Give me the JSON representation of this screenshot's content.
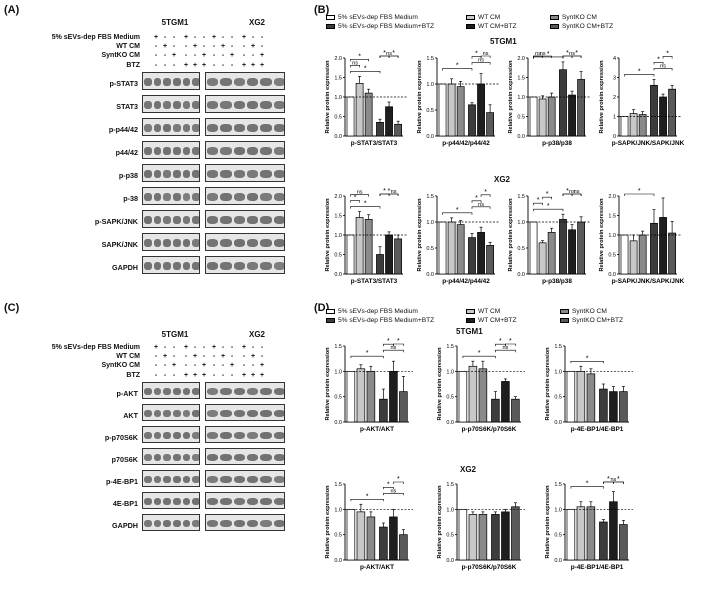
{
  "panels": {
    "A": "(A)",
    "B": "(B)",
    "C": "(C)",
    "D": "(D)"
  },
  "cells": {
    "c1": "5TGM1",
    "c2": "XG2"
  },
  "conditions": [
    "5% sEVs-dep FBS Medium",
    "WT CM",
    "SyntKO CM",
    "BTZ"
  ],
  "signs": [
    [
      "+",
      "-",
      "-",
      "+",
      "-",
      "-"
    ],
    [
      "-",
      "+",
      "-",
      "-",
      "+",
      "-"
    ],
    [
      "-",
      "-",
      "+",
      "-",
      "-",
      "+"
    ],
    [
      "-",
      "-",
      "-",
      "+",
      "+",
      "+"
    ]
  ],
  "proteinsA": [
    "p-STAT3",
    "STAT3",
    "p-p44/42",
    "p44/42",
    "p-p38",
    "p-38",
    "p-SAPK/JNK",
    "SAPK/JNK",
    "GAPDH"
  ],
  "proteinsC": [
    "p-AKT",
    "AKT",
    "p-p70S6K",
    "p70S6K",
    "p-4E-BP1",
    "4E-BP1",
    "GAPDH"
  ],
  "legendB": [
    "5% sEVs-dep FBS Medium",
    "WT CM",
    "SyntKO CM",
    "5% sEVs-dep FBS Medium+BTZ",
    "WT CM+BTZ",
    "SyntKO CM+BTZ"
  ],
  "legendD": [
    "5% sEVs-dep FBS Medium",
    "WT CM",
    "SyntKO CM",
    "5% sEVs-dep FBS Medium+BTZ",
    "WT CM+BTZ",
    "SyntKO CM+BTZ"
  ],
  "colors": {
    "white": "#ffffff",
    "wt": "#c8c8c8",
    "synt": "#8a8a8a",
    "medbtz": "#3c3c3c",
    "wtbtz": "#1e1e1e",
    "syntbtz": "#5a5a5a"
  },
  "ylabel": "Relative protein expression",
  "chart_data": [
    {
      "type": "bar",
      "panel": "B",
      "cell": "5TGM1",
      "xlabel": "p-STAT3/STAT3",
      "yticks": [
        "0.0",
        "0.5",
        "1.0",
        "1.5",
        "2.0"
      ],
      "ylim": [
        0,
        2.0
      ],
      "values": [
        1.0,
        1.35,
        1.1,
        0.35,
        0.75,
        0.3
      ],
      "errors": [
        0,
        0.18,
        0.1,
        0.08,
        0.12,
        0.08
      ],
      "sig": [
        {
          "a": 0,
          "b": 3,
          "t": "*"
        },
        {
          "a": 0,
          "b": 1,
          "t": "ns"
        },
        {
          "a": 0,
          "b": 2,
          "t": "*"
        },
        {
          "a": 3,
          "b": 5,
          "t": "ns"
        },
        {
          "a": 3,
          "b": 4,
          "t": "*"
        },
        {
          "a": 4,
          "b": 5,
          "t": "*"
        }
      ]
    },
    {
      "type": "bar",
      "panel": "B",
      "cell": "5TGM1",
      "xlabel": "p-p44/42/p44/42",
      "yticks": [
        "0.0",
        "0.5",
        "1.0",
        "1.5"
      ],
      "ylim": [
        0,
        1.5
      ],
      "values": [
        1.0,
        1.0,
        0.95,
        0.6,
        1.0,
        0.45
      ],
      "errors": [
        0,
        0.1,
        0.1,
        0.04,
        0.2,
        0.15
      ],
      "sig": [
        {
          "a": 0,
          "b": 3,
          "t": "*"
        },
        {
          "a": 3,
          "b": 5,
          "t": "ns"
        },
        {
          "a": 3,
          "b": 4,
          "t": "*"
        },
        {
          "a": 4,
          "b": 5,
          "t": "ns"
        }
      ]
    },
    {
      "type": "bar",
      "panel": "B",
      "cell": "5TGM1",
      "xlabel": "p-p38/p38",
      "yticks": [
        "0.0",
        "0.5",
        "1.0",
        "1.5",
        "2.0"
      ],
      "ylim": [
        0,
        2.0
      ],
      "values": [
        1.0,
        0.95,
        1.0,
        1.7,
        1.05,
        1.45
      ],
      "errors": [
        0,
        0.08,
        0.1,
        0.2,
        0.1,
        0.2
      ],
      "sig": [
        {
          "a": 0,
          "b": 3,
          "t": "*"
        },
        {
          "a": 0,
          "b": 1,
          "t": "ns"
        },
        {
          "a": 0,
          "b": 2,
          "t": "ns"
        },
        {
          "a": 3,
          "b": 5,
          "t": "ns"
        },
        {
          "a": 3,
          "b": 4,
          "t": "*"
        },
        {
          "a": 4,
          "b": 5,
          "t": "*"
        }
      ]
    },
    {
      "type": "bar",
      "panel": "B",
      "cell": "5TGM1",
      "xlabel": "p-SAPK/JNK/SAPK/JNK",
      "yticks": [
        "0",
        "1",
        "2",
        "3",
        "4"
      ],
      "ylim": [
        0,
        4
      ],
      "values": [
        1.0,
        1.15,
        1.1,
        2.6,
        2.0,
        2.4
      ],
      "errors": [
        0,
        0.2,
        0.15,
        0.3,
        0.15,
        0.2
      ],
      "sig": [
        {
          "a": 0,
          "b": 3,
          "t": "*"
        },
        {
          "a": 3,
          "b": 5,
          "t": "ns"
        },
        {
          "a": 3,
          "b": 4,
          "t": "*"
        },
        {
          "a": 4,
          "b": 5,
          "t": "*"
        }
      ]
    },
    {
      "type": "bar",
      "panel": "B",
      "cell": "XG2",
      "xlabel": "p-STAT3/STAT3",
      "yticks": [
        "0.0",
        "0.5",
        "1.0",
        "1.5",
        "2.0"
      ],
      "ylim": [
        0,
        2.0
      ],
      "values": [
        1.0,
        1.45,
        1.4,
        0.5,
        1.0,
        0.9
      ],
      "errors": [
        0,
        0.15,
        0.12,
        0.2,
        0.08,
        0.1
      ],
      "sig": [
        {
          "a": 0,
          "b": 3,
          "t": "*"
        },
        {
          "a": 0,
          "b": 1,
          "t": "*"
        },
        {
          "a": 0,
          "b": 2,
          "t": "ns"
        },
        {
          "a": 3,
          "b": 5,
          "t": "*"
        },
        {
          "a": 3,
          "b": 4,
          "t": "*"
        },
        {
          "a": 4,
          "b": 5,
          "t": "ns"
        }
      ]
    },
    {
      "type": "bar",
      "panel": "B",
      "cell": "XG2",
      "xlabel": "p-p44/42/p44/42",
      "yticks": [
        "0.0",
        "0.5",
        "1.0",
        "1.5"
      ],
      "ylim": [
        0,
        1.5
      ],
      "values": [
        1.0,
        1.0,
        0.95,
        0.7,
        0.8,
        0.55
      ],
      "errors": [
        0,
        0.08,
        0.08,
        0.08,
        0.1,
        0.06
      ],
      "sig": [
        {
          "a": 0,
          "b": 3,
          "t": "*"
        },
        {
          "a": 3,
          "b": 5,
          "t": "ns"
        },
        {
          "a": 3,
          "b": 4,
          "t": "*"
        },
        {
          "a": 4,
          "b": 5,
          "t": "*"
        }
      ]
    },
    {
      "type": "bar",
      "panel": "B",
      "cell": "XG2",
      "xlabel": "p-p38/p38",
      "yticks": [
        "0.0",
        "0.5",
        "1.0",
        "1.5"
      ],
      "ylim": [
        0,
        1.5
      ],
      "values": [
        1.0,
        0.6,
        0.8,
        1.05,
        0.85,
        1.0
      ],
      "errors": [
        0,
        0.04,
        0.08,
        0.1,
        0.1,
        0.1
      ],
      "sig": [
        {
          "a": 0,
          "b": 3,
          "t": "*"
        },
        {
          "a": 0,
          "b": 1,
          "t": "*"
        },
        {
          "a": 1,
          "b": 2,
          "t": "*"
        },
        {
          "a": 3,
          "b": 5,
          "t": "ns"
        },
        {
          "a": 3,
          "b": 4,
          "t": "*"
        },
        {
          "a": 4,
          "b": 5,
          "t": "ns"
        }
      ]
    },
    {
      "type": "bar",
      "panel": "B",
      "cell": "XG2",
      "xlabel": "p-SAPK/JNK/SAPK/JNK",
      "yticks": [
        "0.0",
        "0.5",
        "1.0",
        "1.5",
        "2.0"
      ],
      "ylim": [
        0,
        2.0
      ],
      "values": [
        1.0,
        0.85,
        1.0,
        1.3,
        1.45,
        1.05
      ],
      "errors": [
        0,
        0.15,
        0.1,
        0.35,
        0.5,
        0.3
      ],
      "sig": [
        {
          "a": 0,
          "b": 3,
          "t": "*"
        }
      ]
    },
    {
      "type": "bar",
      "panel": "D",
      "cell": "5TGM1",
      "xlabel": "p-AKT/AKT",
      "yticks": [
        "0.0",
        "0.5",
        "1.0",
        "1.5"
      ],
      "ylim": [
        0,
        1.5
      ],
      "values": [
        1.0,
        1.05,
        1.0,
        0.45,
        1.0,
        0.6
      ],
      "errors": [
        0,
        0.08,
        0.1,
        0.2,
        0.2,
        0.3
      ],
      "sig": [
        {
          "a": 0,
          "b": 3,
          "t": "*"
        },
        {
          "a": 3,
          "b": 5,
          "t": "ns"
        },
        {
          "a": 3,
          "b": 4,
          "t": "*"
        },
        {
          "a": 4,
          "b": 5,
          "t": "*"
        }
      ]
    },
    {
      "type": "bar",
      "panel": "D",
      "cell": "5TGM1",
      "xlabel": "p-p70S6K/p70S6K",
      "yticks": [
        "0.0",
        "0.5",
        "1.0",
        "1.5"
      ],
      "ylim": [
        0,
        1.5
      ],
      "values": [
        1.0,
        1.1,
        1.05,
        0.45,
        0.8,
        0.45
      ],
      "errors": [
        0,
        0.1,
        0.15,
        0.15,
        0.05,
        0.05
      ],
      "sig": [
        {
          "a": 0,
          "b": 3,
          "t": "*"
        },
        {
          "a": 3,
          "b": 5,
          "t": "ns"
        },
        {
          "a": 3,
          "b": 4,
          "t": "*"
        },
        {
          "a": 4,
          "b": 5,
          "t": "*"
        }
      ]
    },
    {
      "type": "bar",
      "panel": "D",
      "cell": "5TGM1",
      "xlabel": "p-4E-BP1/4E-BP1",
      "yticks": [
        "0.0",
        "0.5",
        "1.0",
        "1.5"
      ],
      "ylim": [
        0,
        1.5
      ],
      "values": [
        1.0,
        1.0,
        0.95,
        0.65,
        0.6,
        0.6
      ],
      "errors": [
        0,
        0.1,
        0.1,
        0.1,
        0.1,
        0.1
      ],
      "sig": [
        {
          "a": 0,
          "b": 3,
          "t": "*"
        }
      ]
    },
    {
      "type": "bar",
      "panel": "D",
      "cell": "XG2",
      "xlabel": "p-AKT/AKT",
      "yticks": [
        "0.0",
        "0.5",
        "1.0",
        "1.5"
      ],
      "ylim": [
        0,
        1.5
      ],
      "values": [
        1.0,
        0.95,
        0.85,
        0.65,
        0.85,
        0.5
      ],
      "errors": [
        0,
        0.15,
        0.1,
        0.08,
        0.15,
        0.1
      ],
      "sig": [
        {
          "a": 0,
          "b": 3,
          "t": "*"
        },
        {
          "a": 3,
          "b": 5,
          "t": "ns"
        },
        {
          "a": 3,
          "b": 4,
          "t": "*"
        },
        {
          "a": 4,
          "b": 5,
          "t": "*"
        }
      ]
    },
    {
      "type": "bar",
      "panel": "D",
      "cell": "XG2",
      "xlabel": "p-p70S6K/p70S6K",
      "yticks": [
        "0.0",
        "0.5",
        "1.0",
        "1.5"
      ],
      "ylim": [
        0,
        1.5
      ],
      "values": [
        1.0,
        0.9,
        0.9,
        0.9,
        0.95,
        1.05
      ],
      "errors": [
        0,
        0.05,
        0.05,
        0.05,
        0.05,
        0.08
      ],
      "sig": []
    },
    {
      "type": "bar",
      "panel": "D",
      "cell": "XG2",
      "xlabel": "p-4E-BP1/4E-BP1",
      "yticks": [
        "0.0",
        "0.5",
        "1.0",
        "1.5"
      ],
      "ylim": [
        0,
        1.5
      ],
      "values": [
        1.0,
        1.05,
        1.05,
        0.75,
        1.15,
        0.7
      ],
      "errors": [
        0,
        0.1,
        0.1,
        0.05,
        0.2,
        0.08
      ],
      "sig": [
        {
          "a": 0,
          "b": 3,
          "t": "*"
        },
        {
          "a": 3,
          "b": 5,
          "t": "ns"
        },
        {
          "a": 3,
          "b": 4,
          "t": "*"
        },
        {
          "a": 4,
          "b": 5,
          "t": "*"
        }
      ]
    }
  ]
}
